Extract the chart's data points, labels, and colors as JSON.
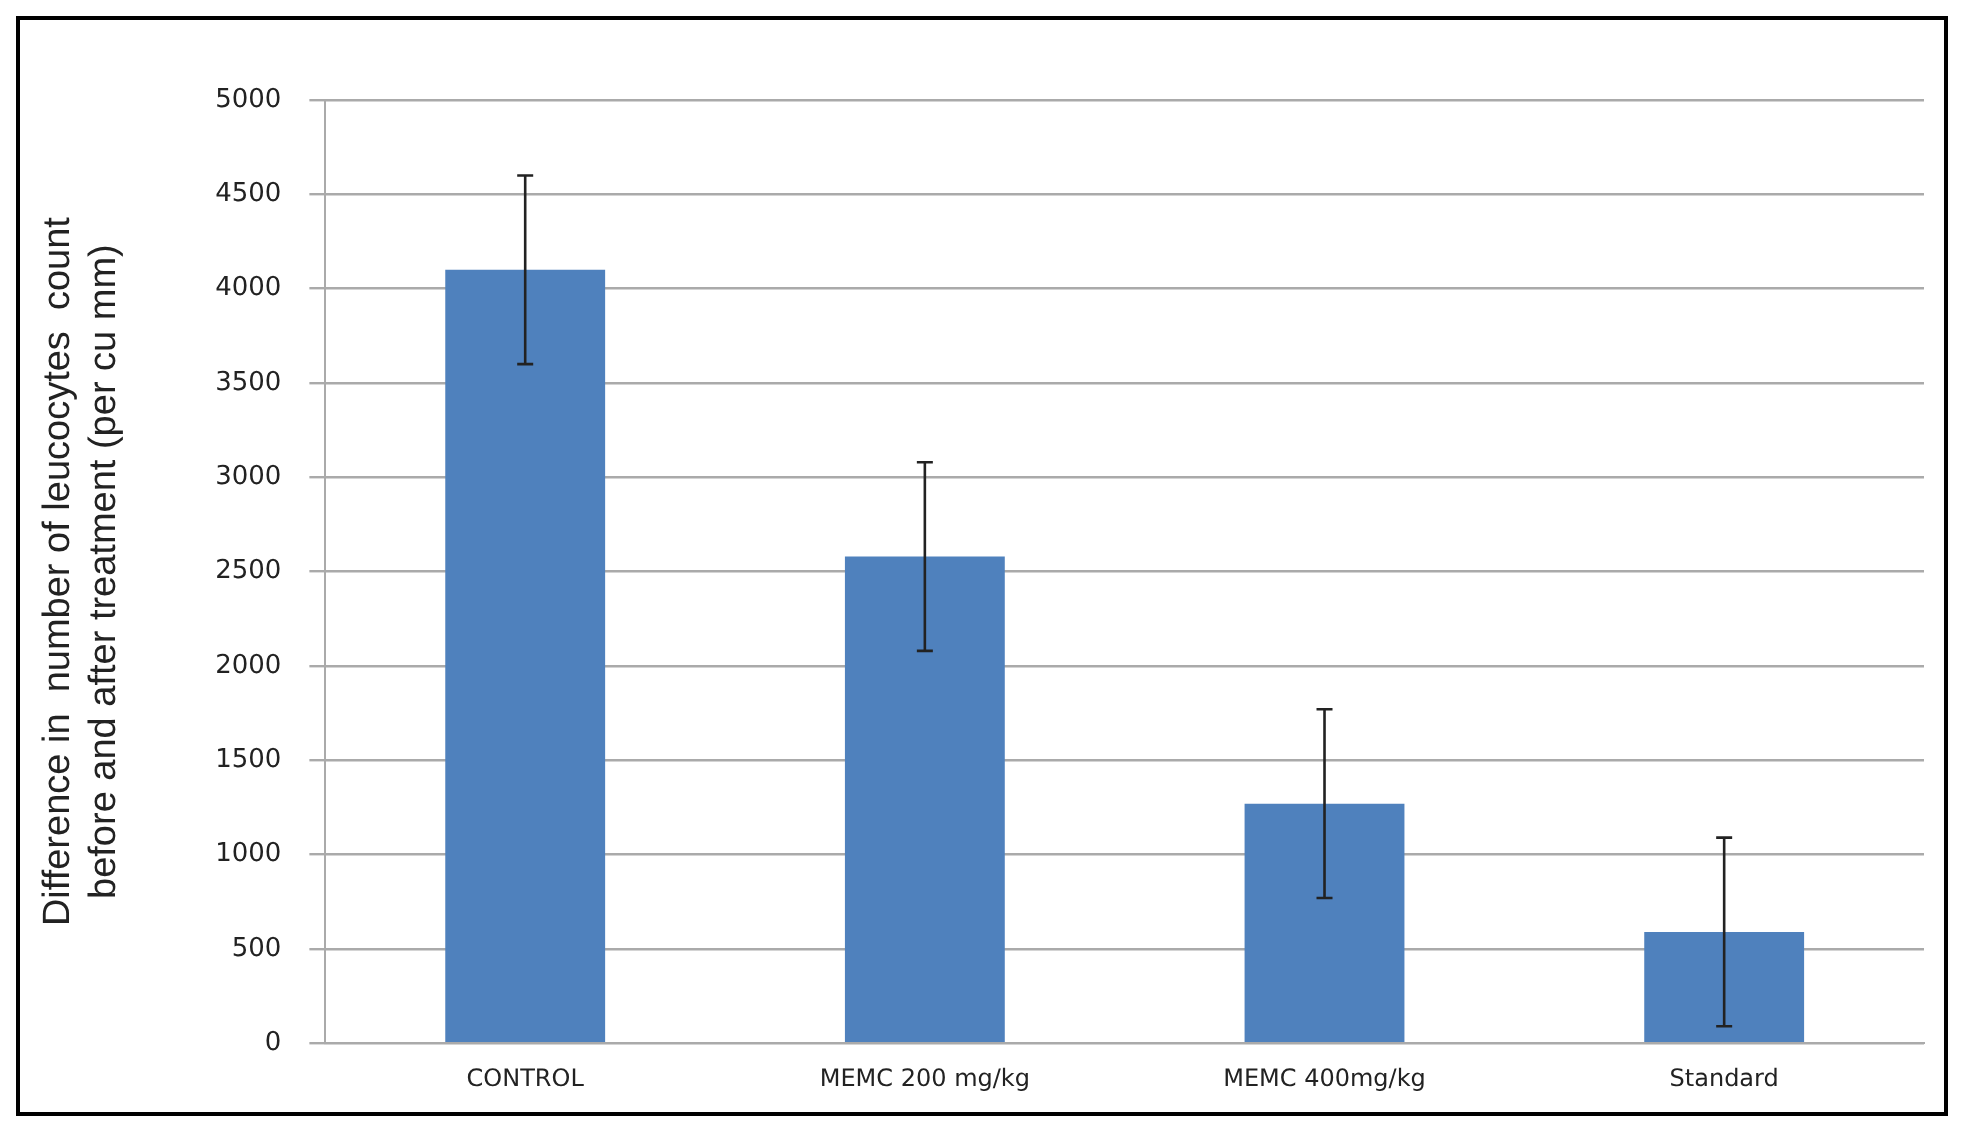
{
  "chart_data": {
    "type": "bar",
    "ylabel": "Difference in  number of leucocytes  count\nbefore and after treatment (per cu mm)",
    "categories": [
      "CONTROL",
      "MEMC 200 mg/kg",
      "MEMC 400mg/kg",
      "Standard"
    ],
    "values": [
      4100,
      2580,
      1270,
      590
    ],
    "errors": [
      500,
      500,
      500,
      500
    ],
    "color": "#4f81bd",
    "ylim": [
      0,
      5000
    ],
    "yticks": [
      0,
      500,
      1000,
      1500,
      2000,
      2500,
      3000,
      3500,
      4000,
      4500,
      5000
    ],
    "grid": "y",
    "legend": false
  }
}
